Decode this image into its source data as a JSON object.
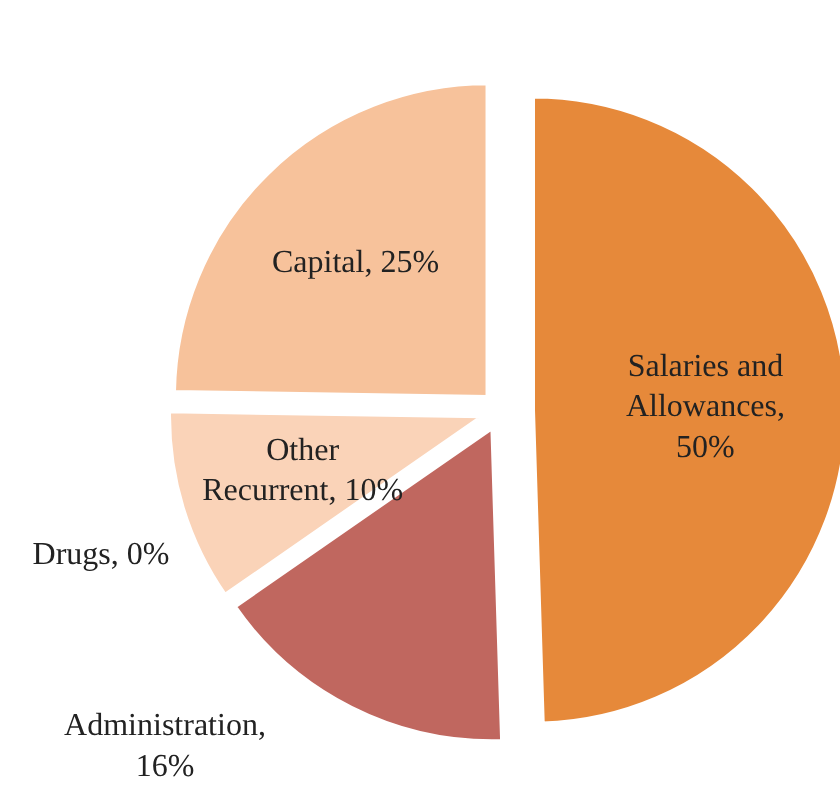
{
  "chart_data": {
    "type": "pie",
    "categories": [
      "Salaries and Allowances, 50%",
      "Administration, 16%",
      "Drugs, 0%",
      "Other Recurrent, 10%",
      "Capital, 25%"
    ],
    "values": [
      50,
      16,
      0,
      10,
      25
    ],
    "colors": [
      "#e6893a",
      "#c0675f",
      "#e3ebcf",
      "#fad3b8",
      "#f7c29b"
    ],
    "data_labels": false
  }
}
